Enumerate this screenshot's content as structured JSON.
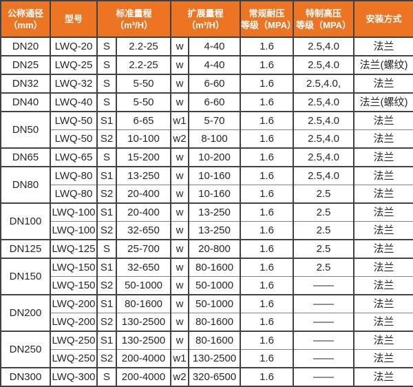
{
  "colors": {
    "header_bg": "#ED7423",
    "header_text": "#FFFFFF",
    "border_color": "#404040",
    "thin_border_color": "#828282",
    "body_text": "#262626"
  },
  "table": {
    "headers": [
      {
        "id": "dn",
        "colspan": 1,
        "lines": [
          "公称通径",
          "（mm）"
        ]
      },
      {
        "id": "model",
        "colspan": 1,
        "lines": [
          "型号"
        ]
      },
      {
        "id": "standard-range",
        "colspan": 2,
        "lines": [
          "标准量程",
          "（m³/H）"
        ]
      },
      {
        "id": "extended-range",
        "colspan": 2,
        "lines": [
          "扩展量程",
          "（m³/H）"
        ]
      },
      {
        "id": "normal-pressure",
        "colspan": 1,
        "lines": [
          "常规耐压",
          "等级（MPA）"
        ]
      },
      {
        "id": "high-pressure",
        "colspan": 1,
        "lines": [
          "特制高压",
          "等级（MPA）"
        ]
      },
      {
        "id": "install",
        "colspan": 1,
        "lines": [
          "安装方式"
        ]
      }
    ],
    "rows": [
      {
        "dn": "DN20",
        "dn_rowspan": 1,
        "sub": false,
        "model": "LWQ-20",
        "std_code": "S",
        "std_range": "2.2-25",
        "ext_code": "w",
        "ext_range": "4-40",
        "pressure": "1.6",
        "high_pressure": "2.5,4.0",
        "install": "法兰"
      },
      {
        "dn": "DN25",
        "dn_rowspan": 1,
        "sub": false,
        "model": "LWQ-25",
        "std_code": "S",
        "std_range": "2.2-25",
        "ext_code": "w",
        "ext_range": "4-40",
        "pressure": "1.6",
        "high_pressure": "2.5,4.0",
        "install": "法兰(螺纹)"
      },
      {
        "dn": "DN32",
        "dn_rowspan": 1,
        "sub": false,
        "model": "LWQ-32",
        "std_code": "S",
        "std_range": "5-50",
        "ext_code": "w",
        "ext_range": "6-60",
        "pressure": "1.6",
        "high_pressure": "2.5,4.0,",
        "install": "法兰"
      },
      {
        "dn": "DN40",
        "dn_rowspan": 1,
        "sub": false,
        "model": "LWQ-40",
        "std_code": "S",
        "std_range": "5-50",
        "ext_code": "w",
        "ext_range": "6-60",
        "pressure": "1.6",
        "high_pressure": "2.5,4.0",
        "install": "法兰(螺纹)"
      },
      {
        "dn": "DN50",
        "dn_rowspan": 2,
        "sub": false,
        "model": "LWQ-50",
        "std_code": "S1",
        "std_range": "6-65",
        "ext_code": "w1",
        "ext_range": "5-70",
        "pressure": "1.6",
        "high_pressure": "2.5,4.0",
        "install": "法兰"
      },
      {
        "dn": null,
        "dn_rowspan": 0,
        "sub": true,
        "model": "LWQ-50",
        "std_code": "S2",
        "std_range": "10-100",
        "ext_code": "w2",
        "ext_range": "8-100",
        "pressure": "1.6",
        "high_pressure": "2.5,4.0",
        "install": "法兰"
      },
      {
        "dn": "DN65",
        "dn_rowspan": 1,
        "sub": false,
        "model": "LWQ-65",
        "std_code": "S",
        "std_range": "15-200",
        "ext_code": "w",
        "ext_range": "10-200",
        "pressure": "1.6",
        "high_pressure": "2.5,4.0",
        "install": "法兰"
      },
      {
        "dn": "DN80",
        "dn_rowspan": 2,
        "sub": false,
        "model": "LWQ-80",
        "std_code": "S1",
        "std_range": "13-250",
        "ext_code": "w",
        "ext_range": "10-160",
        "pressure": "1.6",
        "high_pressure": "2.5,4.0",
        "install": "法兰"
      },
      {
        "dn": null,
        "dn_rowspan": 0,
        "sub": true,
        "model": "LWQ-80",
        "std_code": "S2",
        "std_range": "20-400",
        "ext_code": "w",
        "ext_range": "10-160",
        "pressure": "1.6",
        "high_pressure": "2.5",
        "install": "法兰"
      },
      {
        "dn": "DN100",
        "dn_rowspan": 2,
        "sub": false,
        "model": "LWQ-100",
        "std_code": "S1",
        "std_range": "20-400",
        "ext_code": "w",
        "ext_range": "13-250",
        "pressure": "1.6",
        "high_pressure": "2.5",
        "install": "法兰"
      },
      {
        "dn": null,
        "dn_rowspan": 0,
        "sub": true,
        "model": "LWQ-100",
        "std_code": "S2",
        "std_range": "32-650",
        "ext_code": "w",
        "ext_range": "13-250",
        "pressure": "1.6",
        "high_pressure": "2.5",
        "install": "法兰"
      },
      {
        "dn": "DN125",
        "dn_rowspan": 1,
        "sub": false,
        "model": "LWQ-125",
        "std_code": "S",
        "std_range": "25-700",
        "ext_code": "w",
        "ext_range": "20-800",
        "pressure": "1.6",
        "high_pressure": "2.5",
        "install": "法兰"
      },
      {
        "dn": "DN150",
        "dn_rowspan": 2,
        "sub": false,
        "model": "LWQ-150",
        "std_code": "S1",
        "std_range": "32-650",
        "ext_code": "w",
        "ext_range": "80-1600",
        "pressure": "1.6",
        "high_pressure": "2.5",
        "install": "法兰"
      },
      {
        "dn": null,
        "dn_rowspan": 0,
        "sub": true,
        "model": "LWQ-150",
        "std_code": "S2",
        "std_range": "50-1000",
        "ext_code": "w",
        "ext_range": "50-1000",
        "pressure": "1.6",
        "high_pressure": "——",
        "install": "法兰"
      },
      {
        "dn": "DN200",
        "dn_rowspan": 2,
        "sub": false,
        "model": "LWQ-200",
        "std_code": "S1",
        "std_range": "80-1600",
        "ext_code": "w",
        "ext_range": "50-1000",
        "pressure": "1.6",
        "high_pressure": "——",
        "install": "法兰"
      },
      {
        "dn": null,
        "dn_rowspan": 0,
        "sub": true,
        "model": "LWQ-200",
        "std_code": "S2",
        "std_range": "130-2500",
        "ext_code": "w",
        "ext_range": "80-1600",
        "pressure": "1.6",
        "high_pressure": "——",
        "install": "法兰"
      },
      {
        "dn": "DN250",
        "dn_rowspan": 2,
        "sub": false,
        "model": "LWQ-250",
        "std_code": "S1",
        "std_range": "130-2500",
        "ext_code": "w",
        "ext_range": "80-1600",
        "pressure": "1.6",
        "high_pressure": "——",
        "install": "法兰"
      },
      {
        "dn": null,
        "dn_rowspan": 0,
        "sub": true,
        "model": "LWQ-250",
        "std_code": "S2",
        "std_range": "200-4000",
        "ext_code": "w1",
        "ext_range": "130-2500",
        "pressure": "1.6",
        "high_pressure": "——",
        "install": "法兰"
      },
      {
        "dn": "DN300",
        "dn_rowspan": 1,
        "sub": false,
        "model": "LWQ-300",
        "std_code": "S",
        "std_range": "200-4000",
        "ext_code": "w2",
        "ext_range": "320-6500",
        "pressure": "1.6",
        "high_pressure": "——",
        "install": "法兰"
      }
    ]
  }
}
